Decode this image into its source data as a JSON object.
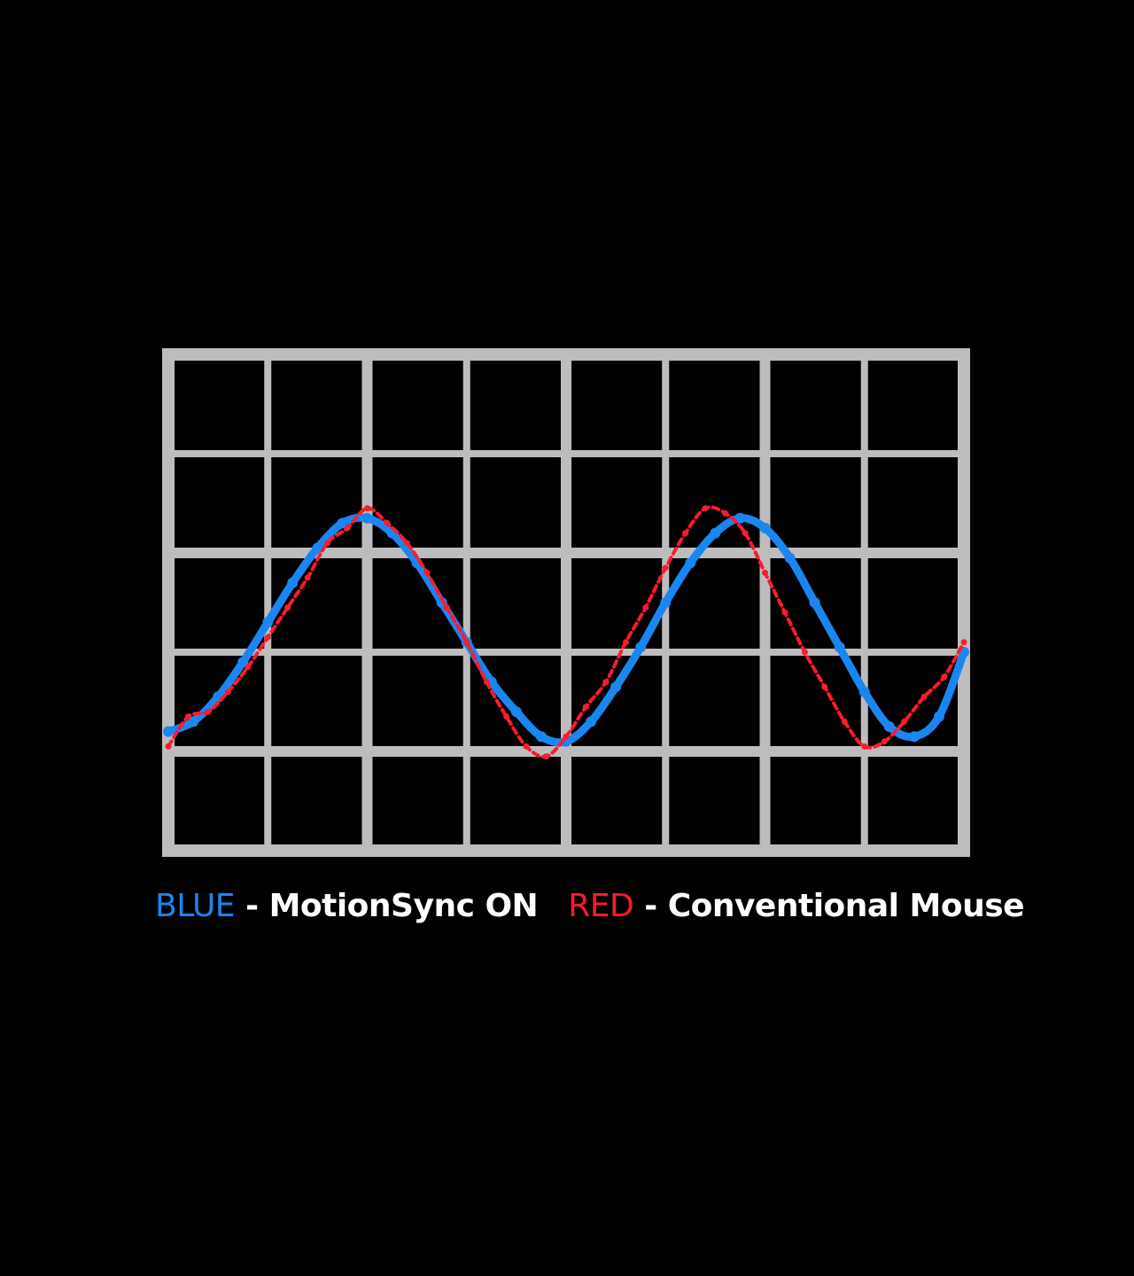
{
  "chart_data": {
    "type": "line",
    "title": "",
    "xlabel": "",
    "ylabel": "",
    "xlim": [
      0,
      8
    ],
    "ylim": [
      0,
      5
    ],
    "grid": true,
    "legend_position": "bottom",
    "series": [
      {
        "name": "MotionSync ON",
        "key_label": "BLUE",
        "color": "#1a86f0",
        "style": "smooth",
        "x": [
          0.0,
          0.25,
          0.5,
          0.75,
          1.0,
          1.25,
          1.5,
          1.75,
          2.0,
          2.25,
          2.5,
          2.75,
          3.0,
          3.25,
          3.5,
          3.75,
          4.0,
          4.25,
          4.5,
          4.75,
          5.0,
          5.25,
          5.5,
          5.75,
          6.0,
          6.25,
          6.5,
          6.75,
          7.0,
          7.25,
          7.5,
          7.75,
          8.0
        ],
        "values": [
          1.2,
          1.3,
          1.55,
          1.9,
          2.3,
          2.7,
          3.05,
          3.3,
          3.35,
          3.2,
          2.9,
          2.5,
          2.1,
          1.7,
          1.4,
          1.15,
          1.1,
          1.3,
          1.65,
          2.05,
          2.5,
          2.9,
          3.2,
          3.35,
          3.25,
          2.95,
          2.5,
          2.05,
          1.6,
          1.25,
          1.15,
          1.35,
          2.0
        ]
      },
      {
        "name": "Conventional Mouse",
        "key_label": "RED",
        "color": "#ff1a2e",
        "style": "jittered",
        "x": [
          0.0,
          0.2,
          0.4,
          0.6,
          0.8,
          1.0,
          1.2,
          1.4,
          1.6,
          1.8,
          2.0,
          2.2,
          2.4,
          2.6,
          2.8,
          3.0,
          3.2,
          3.4,
          3.6,
          3.8,
          4.0,
          4.2,
          4.4,
          4.6,
          4.8,
          5.0,
          5.2,
          5.4,
          5.6,
          5.8,
          6.0,
          6.2,
          6.4,
          6.6,
          6.8,
          7.0,
          7.2,
          7.4,
          7.6,
          7.8,
          8.0
        ],
        "values": [
          1.05,
          1.35,
          1.4,
          1.6,
          1.85,
          2.15,
          2.45,
          2.75,
          3.1,
          3.25,
          3.45,
          3.3,
          3.1,
          2.8,
          2.45,
          2.1,
          1.7,
          1.35,
          1.05,
          0.95,
          1.15,
          1.45,
          1.7,
          2.1,
          2.45,
          2.85,
          3.2,
          3.45,
          3.4,
          3.2,
          2.8,
          2.4,
          2.0,
          1.65,
          1.3,
          1.05,
          1.1,
          1.3,
          1.55,
          1.75,
          2.1
        ]
      }
    ]
  }
}
